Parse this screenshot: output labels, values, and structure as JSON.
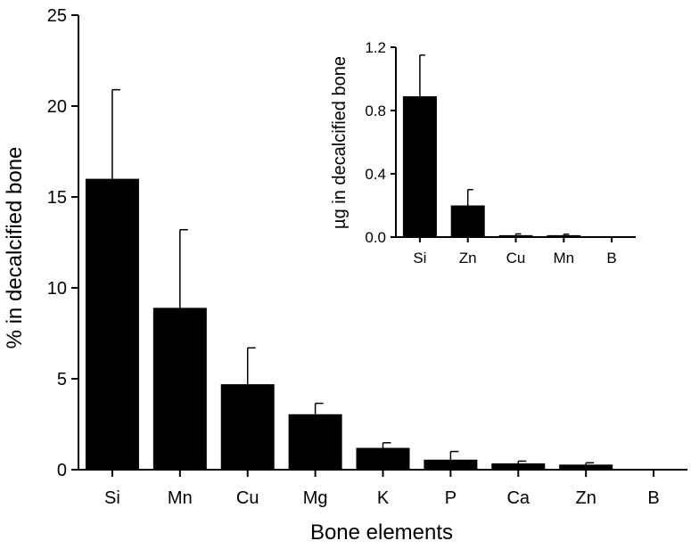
{
  "chart_data": [
    {
      "type": "bar",
      "categories": [
        "Si",
        "Mn",
        "Cu",
        "Mg",
        "K",
        "P",
        "Ca",
        "Zn",
        "B"
      ],
      "values": [
        16.0,
        8.9,
        4.7,
        3.05,
        1.2,
        0.55,
        0.35,
        0.28,
        0.0
      ],
      "errors": [
        4.9,
        4.3,
        2.0,
        0.6,
        0.28,
        0.45,
        0.12,
        0.1,
        0.0
      ],
      "xlabel": "Bone elements",
      "ylabel": "% in decalcified bone",
      "ylim": [
        0,
        25
      ],
      "yticks": [
        "0",
        "5",
        "10",
        "15",
        "20",
        "25"
      ],
      "grid": false
    },
    {
      "type": "bar",
      "role": "inset",
      "categories": [
        "Si",
        "Zn",
        "Cu",
        "Mn",
        "B"
      ],
      "values": [
        0.89,
        0.2,
        0.012,
        0.012,
        0.0
      ],
      "errors": [
        0.26,
        0.1,
        0.008,
        0.006,
        0.0
      ],
      "xlabel": "",
      "ylabel": "µg in decalcified bone",
      "ylim": [
        0,
        1.2
      ],
      "yticks": [
        "0.0",
        "0.4",
        "0.8",
        "1.2"
      ],
      "grid": false
    }
  ]
}
